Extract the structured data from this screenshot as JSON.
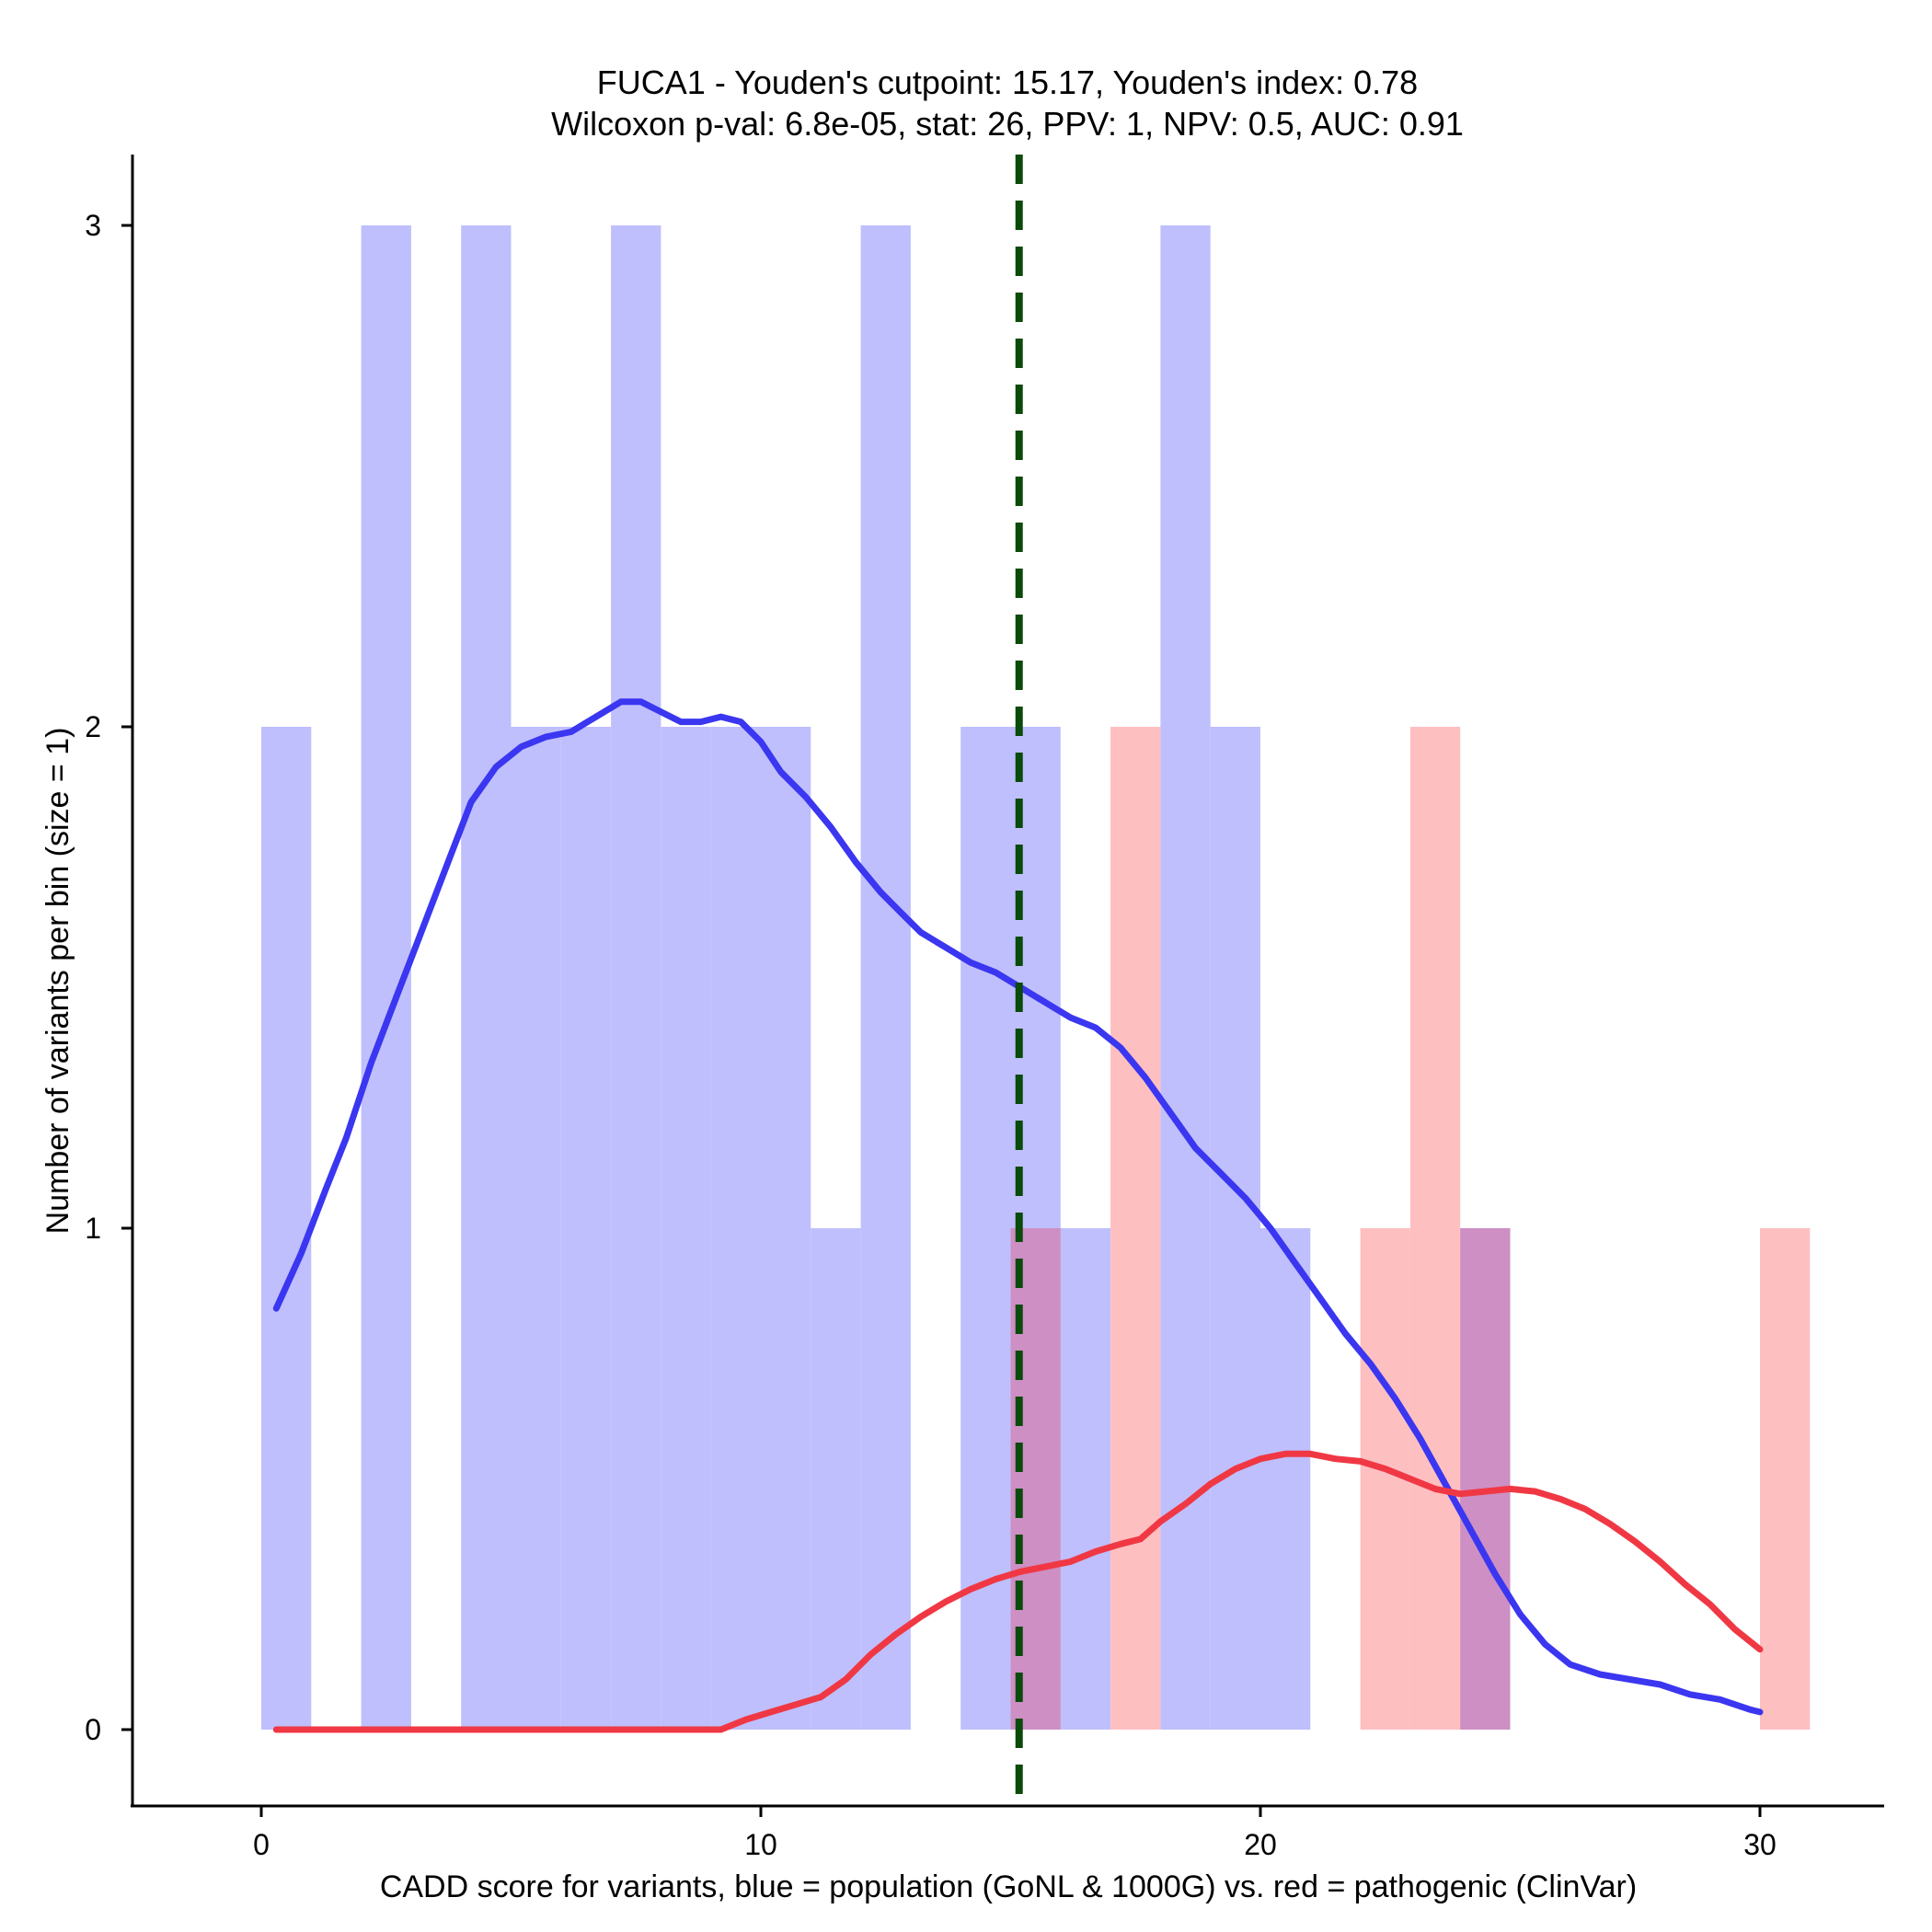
{
  "chart_data": {
    "type": "histogram",
    "title_lines": [
      "FUCA1 - Youden's cutpoint: 15.17, Youden's index: 0.78",
      "Wilcoxon p-val: 6.8e-05, stat: 26, PPV: 1, NPV: 0.5, AUC: 0.91"
    ],
    "xlabel": "CADD score for variants, blue = population (GoNL & 1000G) vs. red = pathogenic (ClinVar)",
    "ylabel": "Number of variants per bin (size = 1)",
    "xlim": [
      -2.6,
      32.6
    ],
    "ylim": [
      -0.15,
      3.15
    ],
    "xticks": [
      0,
      10,
      20,
      30
    ],
    "yticks": [
      0,
      1,
      2,
      3
    ],
    "cutpoint": 15.17,
    "colors": {
      "population_bar": "#bfbffd",
      "pathogenic_bar": "#febfc1",
      "overlap_bar": "#cd8fc4",
      "population_line": "#3b36f0",
      "pathogenic_line": "#f03844",
      "cutpoint_line": "#0a4a0a"
    },
    "series": [
      {
        "name": "population (GoNL & 1000G)",
        "bins": [
          {
            "x0": 0,
            "x1": 1,
            "count": 2
          },
          {
            "x0": 2,
            "x1": 3,
            "count": 3
          },
          {
            "x0": 4,
            "x1": 5,
            "count": 3
          },
          {
            "x0": 5,
            "x1": 6,
            "count": 2
          },
          {
            "x0": 6,
            "x1": 7,
            "count": 2
          },
          {
            "x0": 7,
            "x1": 8,
            "count": 3
          },
          {
            "x0": 8,
            "x1": 9,
            "count": 2
          },
          {
            "x0": 9,
            "x1": 10,
            "count": 2
          },
          {
            "x0": 10,
            "x1": 11,
            "count": 2
          },
          {
            "x0": 11,
            "x1": 12,
            "count": 1
          },
          {
            "x0": 12,
            "x1": 13,
            "count": 3
          },
          {
            "x0": 14,
            "x1": 15,
            "count": 2
          },
          {
            "x0": 15,
            "x1": 16,
            "count": 2
          },
          {
            "x0": 16,
            "x1": 17,
            "count": 1
          },
          {
            "x0": 18,
            "x1": 19,
            "count": 3
          },
          {
            "x0": 19,
            "x1": 20,
            "count": 2
          },
          {
            "x0": 20,
            "x1": 21,
            "count": 1
          },
          {
            "x0": 24,
            "x1": 25,
            "count": 1
          }
        ],
        "density_curve": [
          [
            0.3,
            0.84
          ],
          [
            0.8,
            0.95
          ],
          [
            1.3,
            1.08
          ],
          [
            1.7,
            1.18
          ],
          [
            2.2,
            1.33
          ],
          [
            2.7,
            1.46
          ],
          [
            3.2,
            1.59
          ],
          [
            3.7,
            1.72
          ],
          [
            4.2,
            1.85
          ],
          [
            4.7,
            1.92
          ],
          [
            5.2,
            1.96
          ],
          [
            5.7,
            1.98
          ],
          [
            6.2,
            1.99
          ],
          [
            6.7,
            2.02
          ],
          [
            7.2,
            2.05
          ],
          [
            7.6,
            2.05
          ],
          [
            8.0,
            2.03
          ],
          [
            8.4,
            2.01
          ],
          [
            8.8,
            2.01
          ],
          [
            9.2,
            2.02
          ],
          [
            9.6,
            2.01
          ],
          [
            10.0,
            1.97
          ],
          [
            10.4,
            1.91
          ],
          [
            10.9,
            1.86
          ],
          [
            11.4,
            1.8
          ],
          [
            11.9,
            1.73
          ],
          [
            12.4,
            1.67
          ],
          [
            12.8,
            1.63
          ],
          [
            13.2,
            1.59
          ],
          [
            13.7,
            1.56
          ],
          [
            14.2,
            1.53
          ],
          [
            14.7,
            1.51
          ],
          [
            15.2,
            1.48
          ],
          [
            15.7,
            1.45
          ],
          [
            16.2,
            1.42
          ],
          [
            16.7,
            1.4
          ],
          [
            17.2,
            1.36
          ],
          [
            17.7,
            1.3
          ],
          [
            18.2,
            1.23
          ],
          [
            18.7,
            1.16
          ],
          [
            19.2,
            1.11
          ],
          [
            19.7,
            1.06
          ],
          [
            20.2,
            1.0
          ],
          [
            20.7,
            0.93
          ],
          [
            21.2,
            0.86
          ],
          [
            21.7,
            0.79
          ],
          [
            22.2,
            0.73
          ],
          [
            22.7,
            0.66
          ],
          [
            23.2,
            0.58
          ],
          [
            23.7,
            0.49
          ],
          [
            24.2,
            0.4
          ],
          [
            24.7,
            0.31
          ],
          [
            25.2,
            0.23
          ],
          [
            25.7,
            0.17
          ],
          [
            26.2,
            0.13
          ],
          [
            26.8,
            0.11
          ],
          [
            27.4,
            0.1
          ],
          [
            28.0,
            0.09
          ],
          [
            28.6,
            0.07
          ],
          [
            29.2,
            0.06
          ],
          [
            29.8,
            0.04
          ],
          [
            30.0,
            0.035
          ]
        ]
      },
      {
        "name": "pathogenic (ClinVar)",
        "bins": [
          {
            "x0": 15,
            "x1": 16,
            "count": 1
          },
          {
            "x0": 17,
            "x1": 18,
            "count": 2
          },
          {
            "x0": 22,
            "x1": 23,
            "count": 1
          },
          {
            "x0": 23,
            "x1": 24,
            "count": 2
          },
          {
            "x0": 24,
            "x1": 25,
            "count": 1
          },
          {
            "x0": 30,
            "x1": 31,
            "count": 1
          }
        ],
        "density_curve": [
          [
            0.3,
            0.0
          ],
          [
            2.0,
            0.0
          ],
          [
            4.0,
            0.0
          ],
          [
            6.0,
            0.0
          ],
          [
            8.0,
            0.0
          ],
          [
            9.2,
            0.0
          ],
          [
            9.7,
            0.02
          ],
          [
            10.2,
            0.035
          ],
          [
            10.7,
            0.05
          ],
          [
            11.2,
            0.065
          ],
          [
            11.7,
            0.1
          ],
          [
            12.2,
            0.15
          ],
          [
            12.7,
            0.19
          ],
          [
            13.2,
            0.225
          ],
          [
            13.7,
            0.255
          ],
          [
            14.2,
            0.28
          ],
          [
            14.7,
            0.3
          ],
          [
            15.2,
            0.315
          ],
          [
            15.7,
            0.325
          ],
          [
            16.2,
            0.335
          ],
          [
            16.7,
            0.355
          ],
          [
            17.2,
            0.37
          ],
          [
            17.6,
            0.38
          ],
          [
            18.0,
            0.415
          ],
          [
            18.5,
            0.45
          ],
          [
            19.0,
            0.49
          ],
          [
            19.5,
            0.52
          ],
          [
            20.0,
            0.54
          ],
          [
            20.5,
            0.55
          ],
          [
            21.0,
            0.55
          ],
          [
            21.5,
            0.54
          ],
          [
            22.0,
            0.535
          ],
          [
            22.5,
            0.52
          ],
          [
            23.0,
            0.5
          ],
          [
            23.5,
            0.48
          ],
          [
            24.0,
            0.47
          ],
          [
            24.5,
            0.475
          ],
          [
            25.0,
            0.48
          ],
          [
            25.5,
            0.475
          ],
          [
            26.0,
            0.46
          ],
          [
            26.5,
            0.44
          ],
          [
            27.0,
            0.41
          ],
          [
            27.5,
            0.375
          ],
          [
            28.0,
            0.335
          ],
          [
            28.5,
            0.29
          ],
          [
            29.0,
            0.25
          ],
          [
            29.5,
            0.2
          ],
          [
            30.0,
            0.16
          ]
        ]
      }
    ]
  }
}
